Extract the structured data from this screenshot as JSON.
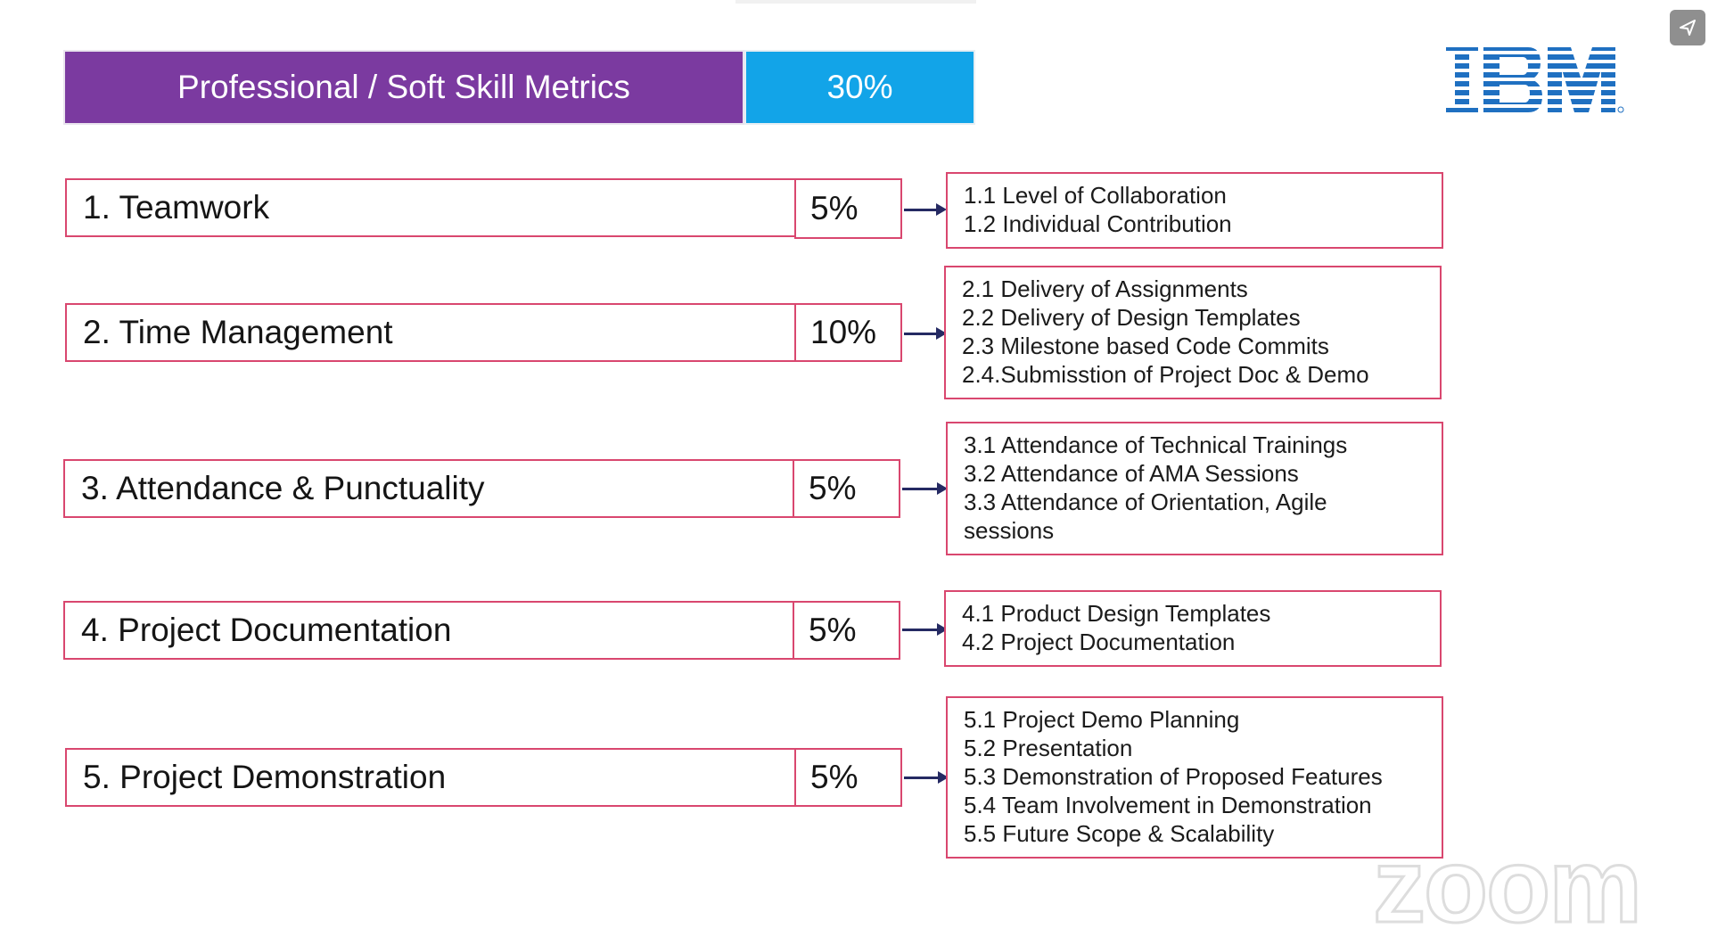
{
  "header": {
    "title": "Professional / Soft Skill Metrics",
    "percent": "30%"
  },
  "logo": {
    "text": "IBM"
  },
  "share_icon": "share-arrow-icon",
  "metrics": [
    {
      "label": "1. Teamwork",
      "percent": "5%",
      "details": [
        "1.1 Level of Collaboration",
        "1.2 Individual Contribution"
      ]
    },
    {
      "label": "2. Time Management",
      "percent": "10%",
      "details": [
        "2.1 Delivery of Assignments",
        "2.2 Delivery of Design Templates",
        "2.3 Milestone based Code Commits",
        "2.4.Submisstion of Project Doc & Demo"
      ]
    },
    {
      "label": "3. Attendance & Punctuality",
      "percent": "5%",
      "details": [
        "3.1 Attendance of Technical Trainings",
        "3.2 Attendance of AMA Sessions",
        "3.3 Attendance of Orientation, Agile",
        "sessions"
      ]
    },
    {
      "label": "4. Project Documentation",
      "percent": "5%",
      "details": [
        "4.1 Product Design Templates",
        "4.2 Project Documentation"
      ]
    },
    {
      "label": "5. Project Demonstration",
      "percent": "5%",
      "details": [
        "5.1 Project Demo Planning",
        "5.2 Presentation",
        "5.3 Demonstration of Proposed Features",
        "5.4 Team Involvement in Demonstration",
        "5.5 Future Scope & Scalability"
      ]
    }
  ],
  "watermark": "zoom",
  "colors": {
    "title_bg": "#7b3aa0",
    "percent_bg": "#12a4e8",
    "border": "#d9476f",
    "arrow": "#252a63",
    "ibm_blue": "#1f70c1"
  }
}
